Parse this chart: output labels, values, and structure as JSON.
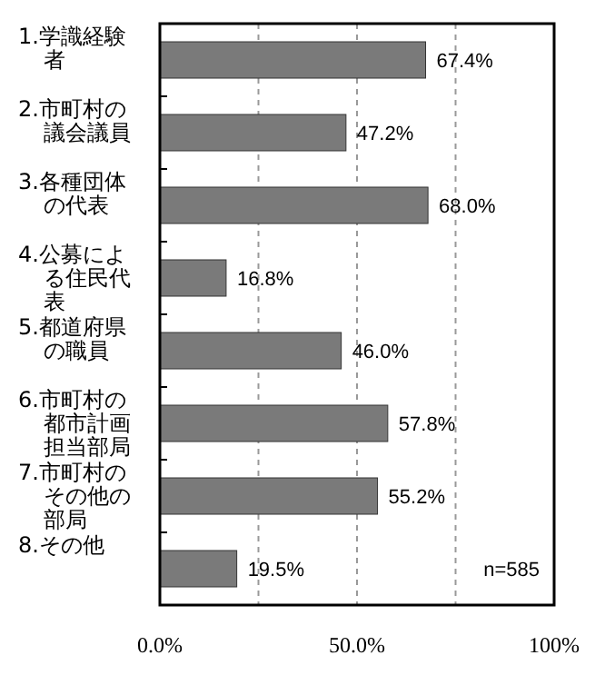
{
  "chart_data": {
    "type": "bar",
    "orientation": "horizontal",
    "categories": [
      "1.学識経験者",
      "2.市町村の議会議員",
      "3.各種団体の代表",
      "4.公募による住民代表",
      "5.都道府県の職員",
      "6.市町村の都市計画担当部局",
      "7.市町村のその他の部局",
      "8.その他"
    ],
    "values": [
      67.4,
      47.2,
      68.0,
      16.8,
      46.0,
      57.8,
      55.2,
      19.5
    ],
    "value_labels": [
      "67.4%",
      "47.2%",
      "68.0%",
      "16.8%",
      "46.0%",
      "57.8%",
      "55.2%",
      "19.5%"
    ],
    "color": "#7a7a7a",
    "xlim": [
      0,
      100
    ],
    "xticks": [
      {
        "value": 0,
        "label": "0.0%"
      },
      {
        "value": 25,
        "label": null
      },
      {
        "value": 50,
        "label": "50.0%"
      },
      {
        "value": 75,
        "label": null
      },
      {
        "value": 100,
        "label": "100%"
      }
    ],
    "grid": "x",
    "annotations": [
      "n=585"
    ]
  }
}
